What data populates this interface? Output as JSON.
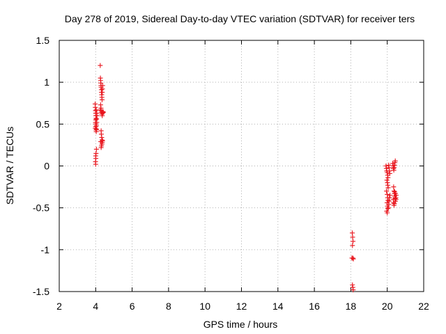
{
  "chart_data": {
    "type": "scatter",
    "title": "Day 278 of 2019, Sidereal Day-to-day VTEC variation (SDTVAR) for receiver ters",
    "xlabel": "GPS time / hours",
    "ylabel": "SDTVAR / TECUs",
    "xlim": [
      2,
      22
    ],
    "ylim": [
      -1.5,
      1.5
    ],
    "xticks": [
      "2",
      "4",
      "6",
      "8",
      "10",
      "12",
      "14",
      "16",
      "18",
      "20",
      "22"
    ],
    "yticks": [
      "1.5",
      "1",
      "0.5",
      "0",
      "-0.5",
      "-1",
      "-1.5"
    ],
    "grid": true,
    "marker": "plus",
    "marker_color": "#e8141c",
    "series": [
      {
        "points": [
          [
            3.97,
            0.74
          ],
          [
            3.98,
            0.7
          ],
          [
            3.99,
            0.66
          ],
          [
            4.0,
            0.63
          ],
          [
            4.01,
            0.6
          ],
          [
            4.02,
            0.57
          ],
          [
            4.0,
            0.55
          ],
          [
            3.99,
            0.52
          ],
          [
            4.01,
            0.5
          ],
          [
            4.0,
            0.47
          ],
          [
            3.98,
            0.45
          ],
          [
            4.02,
            0.43
          ],
          [
            4.03,
            0.41
          ],
          [
            4.05,
            0.44
          ],
          [
            4.04,
            0.48
          ],
          [
            4.06,
            0.52
          ],
          [
            4.05,
            0.56
          ],
          [
            4.07,
            0.6
          ],
          [
            4.06,
            0.63
          ],
          [
            4.03,
            0.67
          ],
          [
            4.04,
            0.2
          ],
          [
            4.02,
            0.15
          ],
          [
            4.0,
            0.12
          ],
          [
            4.01,
            0.09
          ],
          [
            3.99,
            0.05
          ],
          [
            4.0,
            0.02
          ],
          [
            4.25,
            1.2
          ],
          [
            4.26,
            1.05
          ],
          [
            4.27,
            1.02
          ],
          [
            4.28,
            0.99
          ],
          [
            4.29,
            0.96
          ],
          [
            4.3,
            0.94
          ],
          [
            4.31,
            0.91
          ],
          [
            4.32,
            0.88
          ],
          [
            4.33,
            0.85
          ],
          [
            4.34,
            0.82
          ],
          [
            4.35,
            0.79
          ],
          [
            4.36,
            0.88
          ],
          [
            4.37,
            0.92
          ],
          [
            4.38,
            0.96
          ],
          [
            4.27,
            0.73
          ],
          [
            4.29,
            0.69
          ],
          [
            4.3,
            0.66
          ],
          [
            4.32,
            0.64
          ],
          [
            4.34,
            0.62
          ],
          [
            4.36,
            0.6
          ],
          [
            4.38,
            0.63
          ],
          [
            4.4,
            0.65
          ],
          [
            4.42,
            0.64
          ],
          [
            4.26,
            0.67
          ],
          [
            4.3,
            0.42
          ],
          [
            4.31,
            0.38
          ],
          [
            4.33,
            0.34
          ],
          [
            4.35,
            0.31
          ],
          [
            4.36,
            0.28
          ],
          [
            4.34,
            0.26
          ],
          [
            4.32,
            0.24
          ],
          [
            4.3,
            0.22
          ],
          [
            4.28,
            0.29
          ],
          [
            4.38,
            0.3
          ],
          [
            18.08,
            -0.8
          ],
          [
            18.1,
            -0.85
          ],
          [
            18.12,
            -0.9
          ],
          [
            18.09,
            -0.95
          ],
          [
            18.06,
            -1.1
          ],
          [
            18.11,
            -1.1
          ],
          [
            18.14,
            -1.11
          ],
          [
            18.09,
            -1.42
          ],
          [
            18.11,
            -1.45
          ],
          [
            18.13,
            -1.48
          ],
          [
            19.93,
            0.0
          ],
          [
            19.95,
            -0.03
          ],
          [
            19.97,
            -0.06
          ],
          [
            20.0,
            -0.08
          ],
          [
            20.02,
            -0.11
          ],
          [
            20.04,
            -0.14
          ],
          [
            19.98,
            -0.17
          ],
          [
            20.01,
            -0.2
          ],
          [
            20.03,
            -0.23
          ],
          [
            20.05,
            -0.26
          ],
          [
            19.96,
            -0.3
          ],
          [
            20.0,
            -0.34
          ],
          [
            20.02,
            -0.38
          ],
          [
            20.04,
            -0.41
          ],
          [
            19.99,
            -0.44
          ],
          [
            20.01,
            -0.48
          ],
          [
            20.03,
            -0.51
          ],
          [
            19.97,
            -0.54
          ],
          [
            20.0,
            -0.56
          ],
          [
            20.06,
            -0.5
          ],
          [
            20.08,
            -0.46
          ],
          [
            20.1,
            -0.42
          ],
          [
            20.12,
            -0.38
          ],
          [
            20.15,
            -0.35
          ],
          [
            20.08,
            0.01
          ],
          [
            20.1,
            -0.02
          ],
          [
            20.12,
            -0.06
          ],
          [
            20.14,
            -0.09
          ],
          [
            20.3,
            0.03
          ],
          [
            20.32,
            0.0
          ],
          [
            20.34,
            -0.03
          ],
          [
            20.36,
            -0.05
          ],
          [
            20.38,
            -0.02
          ],
          [
            20.4,
            0.01
          ],
          [
            20.42,
            0.04
          ],
          [
            20.44,
            0.06
          ],
          [
            20.35,
            -0.25
          ],
          [
            20.37,
            -0.3
          ],
          [
            20.39,
            -0.33
          ],
          [
            20.41,
            -0.36
          ],
          [
            20.43,
            -0.39
          ],
          [
            20.45,
            -0.42
          ],
          [
            20.47,
            -0.38
          ],
          [
            20.49,
            -0.35
          ],
          [
            20.33,
            -0.4
          ],
          [
            20.35,
            -0.44
          ],
          [
            20.37,
            -0.47
          ],
          [
            20.39,
            -0.45
          ],
          [
            20.41,
            -0.31
          ],
          [
            20.45,
            -0.33
          ],
          [
            20.48,
            -0.4
          ]
        ]
      }
    ]
  }
}
